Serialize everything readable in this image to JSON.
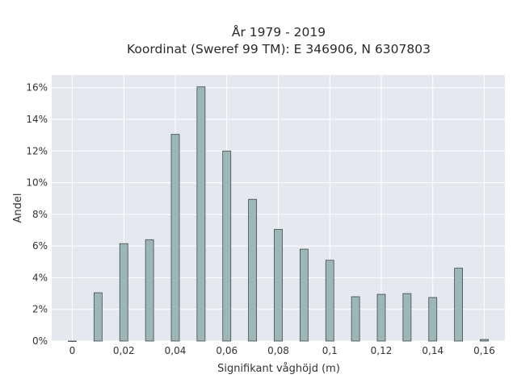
{
  "chart_data": {
    "type": "bar",
    "title_lines": [
      "År 1979 - 2019",
      "Koordinat (Sweref 99 TM): E 346906, N 6307803"
    ],
    "xlabel": "Signifikant våghöjd (m)",
    "ylabel": "Andel",
    "x": [
      0,
      0.01,
      0.02,
      0.03,
      0.04,
      0.05,
      0.06,
      0.07,
      0.08,
      0.09,
      0.1,
      0.11,
      0.12,
      0.13,
      0.14,
      0.15,
      0.16
    ],
    "values": [
      0.0,
      3.05,
      6.15,
      6.4,
      13.05,
      16.05,
      12.0,
      8.95,
      7.05,
      5.8,
      5.1,
      2.8,
      2.95,
      3.0,
      2.75,
      4.6,
      0.1
    ],
    "xlim": [
      -0.008,
      0.168
    ],
    "ylim": [
      0,
      16.8
    ],
    "x_ticks": [
      {
        "value": 0,
        "label": "0"
      },
      {
        "value": 0.02,
        "label": "0,02"
      },
      {
        "value": 0.04,
        "label": "0,04"
      },
      {
        "value": 0.06,
        "label": "0,06"
      },
      {
        "value": 0.08,
        "label": "0,08"
      },
      {
        "value": 0.1,
        "label": "0,1"
      },
      {
        "value": 0.12,
        "label": "0,12"
      },
      {
        "value": 0.14,
        "label": "0,14"
      },
      {
        "value": 0.16,
        "label": "0,16"
      }
    ],
    "y_ticks": [
      {
        "value": 0,
        "label": "0%"
      },
      {
        "value": 2,
        "label": "2%"
      },
      {
        "value": 4,
        "label": "4%"
      },
      {
        "value": 6,
        "label": "6%"
      },
      {
        "value": 8,
        "label": "8%"
      },
      {
        "value": 10,
        "label": "10%"
      },
      {
        "value": 12,
        "label": "12%"
      },
      {
        "value": 14,
        "label": "14%"
      },
      {
        "value": 16,
        "label": "16%"
      }
    ],
    "grid": true,
    "colors": {
      "bar_fill": "#9fb6b7",
      "bar_edge": "#3d4a4a",
      "plot_bg": "#e6e8ef",
      "grid": "#ffffff"
    }
  }
}
